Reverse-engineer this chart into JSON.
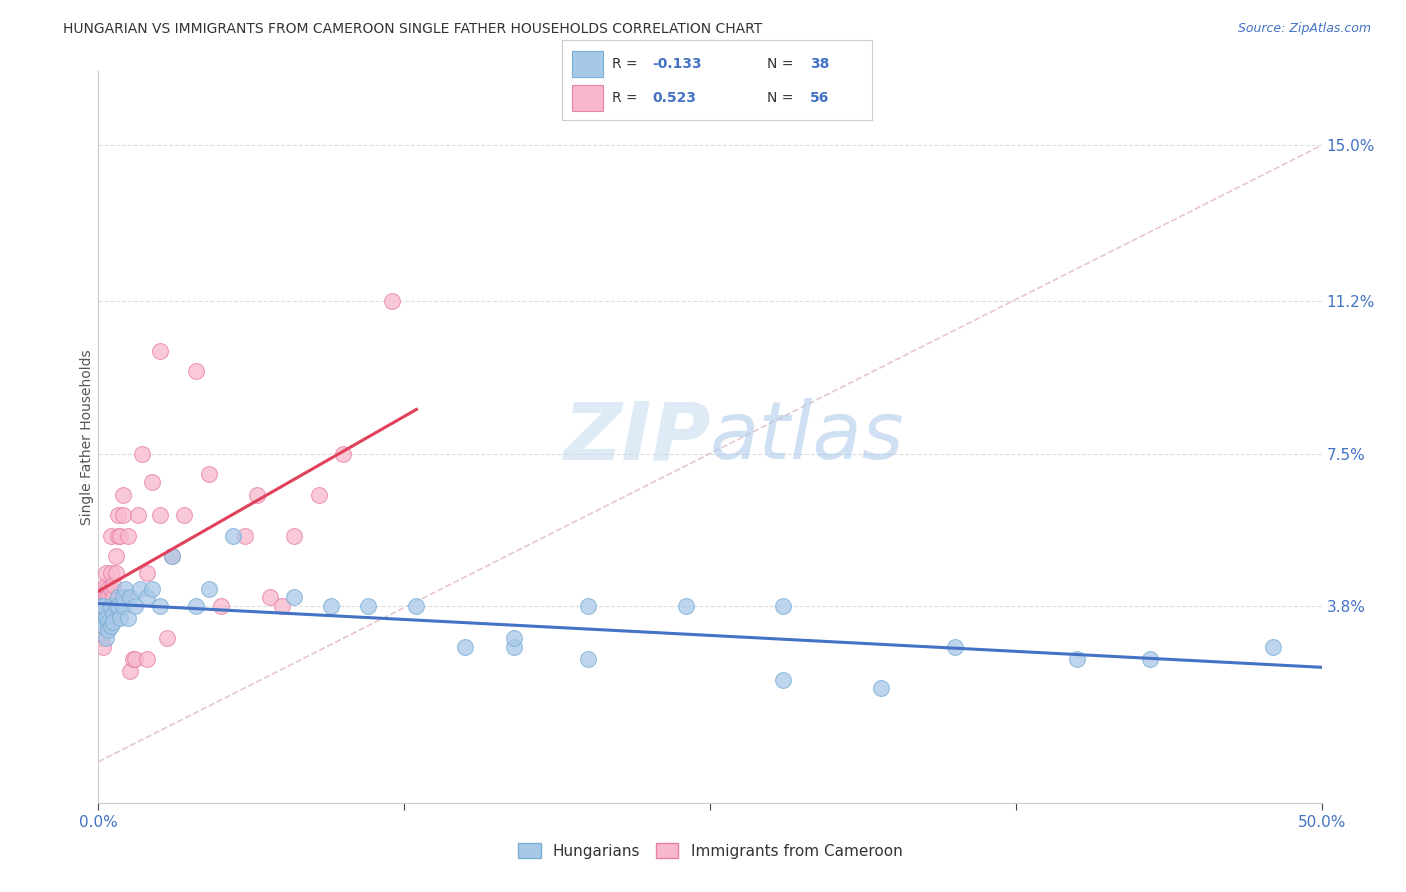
{
  "title": "HUNGARIAN VS IMMIGRANTS FROM CAMEROON SINGLE FATHER HOUSEHOLDS CORRELATION CHART",
  "source": "Source: ZipAtlas.com",
  "ylabel": "Single Father Households",
  "ytick_labels": [
    "3.8%",
    "7.5%",
    "11.2%",
    "15.0%"
  ],
  "ytick_values": [
    0.038,
    0.075,
    0.112,
    0.15
  ],
  "xlim": [
    0.0,
    0.5
  ],
  "ylim": [
    -0.01,
    0.168
  ],
  "bg_color": "#ffffff",
  "grid_color": "#dddddd",
  "hungarian_color": "#a8c8e8",
  "hungarian_edge": "#7aafd4",
  "cameroon_color": "#f8b8cc",
  "cameroon_edge": "#e880a8",
  "hungarian_line_color": "#4472c4",
  "cameroon_line_color": "#e0405a",
  "diag_line_color": "#e0b8c8",
  "watermark_color": "#ccdff0",
  "hungarian_x": [
    0.001,
    0.001,
    0.002,
    0.002,
    0.003,
    0.003,
    0.004,
    0.004,
    0.005,
    0.005,
    0.006,
    0.006,
    0.007,
    0.008,
    0.008,
    0.009,
    0.01,
    0.01,
    0.011,
    0.012,
    0.013,
    0.015,
    0.017,
    0.02,
    0.022,
    0.025,
    0.03,
    0.04,
    0.045,
    0.055,
    0.08,
    0.095,
    0.11,
    0.13,
    0.15,
    0.17,
    0.2,
    0.24,
    0.28,
    0.35,
    0.17,
    0.2,
    0.28,
    0.32,
    0.4,
    0.43,
    0.48
  ],
  "hungarian_y": [
    0.035,
    0.038,
    0.033,
    0.038,
    0.035,
    0.03,
    0.034,
    0.032,
    0.038,
    0.033,
    0.036,
    0.034,
    0.038,
    0.04,
    0.038,
    0.035,
    0.038,
    0.04,
    0.042,
    0.035,
    0.04,
    0.038,
    0.042,
    0.04,
    0.042,
    0.038,
    0.05,
    0.038,
    0.042,
    0.055,
    0.04,
    0.038,
    0.038,
    0.038,
    0.028,
    0.028,
    0.038,
    0.038,
    0.038,
    0.028,
    0.03,
    0.025,
    0.02,
    0.018,
    0.025,
    0.025,
    0.028
  ],
  "cameroon_x": [
    0.001,
    0.001,
    0.001,
    0.002,
    0.002,
    0.002,
    0.002,
    0.003,
    0.003,
    0.003,
    0.003,
    0.004,
    0.004,
    0.004,
    0.004,
    0.005,
    0.005,
    0.005,
    0.005,
    0.005,
    0.006,
    0.006,
    0.006,
    0.007,
    0.007,
    0.008,
    0.008,
    0.009,
    0.01,
    0.01,
    0.011,
    0.012,
    0.013,
    0.014,
    0.015,
    0.016,
    0.018,
    0.02,
    0.02,
    0.022,
    0.025,
    0.025,
    0.028,
    0.03,
    0.035,
    0.04,
    0.045,
    0.05,
    0.06,
    0.065,
    0.07,
    0.075,
    0.08,
    0.09,
    0.1,
    0.12
  ],
  "cameroon_y": [
    0.035,
    0.04,
    0.03,
    0.042,
    0.038,
    0.033,
    0.028,
    0.04,
    0.038,
    0.043,
    0.046,
    0.038,
    0.042,
    0.035,
    0.04,
    0.046,
    0.042,
    0.038,
    0.035,
    0.055,
    0.04,
    0.038,
    0.043,
    0.05,
    0.046,
    0.055,
    0.06,
    0.055,
    0.06,
    0.065,
    0.04,
    0.055,
    0.022,
    0.025,
    0.025,
    0.06,
    0.075,
    0.025,
    0.046,
    0.068,
    0.06,
    0.1,
    0.03,
    0.05,
    0.06,
    0.095,
    0.07,
    0.038,
    0.055,
    0.065,
    0.04,
    0.038,
    0.055,
    0.065,
    0.075,
    0.112
  ]
}
